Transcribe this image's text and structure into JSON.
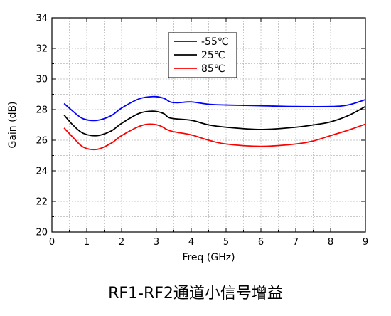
{
  "chart_data": {
    "type": "line",
    "title": "",
    "xlabel": "Freq (GHz)",
    "ylabel": "Gain (dB)",
    "xlim": [
      0,
      9
    ],
    "ylim": [
      20,
      34
    ],
    "xticks": [
      0,
      1,
      2,
      3,
      4,
      5,
      6,
      7,
      8,
      9
    ],
    "yticks": [
      20,
      22,
      24,
      26,
      28,
      30,
      32,
      34
    ],
    "grid": true,
    "legend_position": "top-center",
    "caption": "RF1-RF2通道小信号增益",
    "series": [
      {
        "name": "-55℃",
        "color": "#0000ff",
        "points": [
          [
            0.35,
            28.4
          ],
          [
            0.6,
            27.9
          ],
          [
            0.9,
            27.4
          ],
          [
            1.3,
            27.3
          ],
          [
            1.7,
            27.6
          ],
          [
            2.0,
            28.1
          ],
          [
            2.5,
            28.7
          ],
          [
            2.9,
            28.85
          ],
          [
            3.2,
            28.75
          ],
          [
            3.4,
            28.5
          ],
          [
            3.6,
            28.45
          ],
          [
            4.0,
            28.5
          ],
          [
            4.5,
            28.35
          ],
          [
            5.0,
            28.3
          ],
          [
            6.0,
            28.25
          ],
          [
            7.0,
            28.2
          ],
          [
            8.0,
            28.2
          ],
          [
            8.5,
            28.3
          ],
          [
            9.0,
            28.65
          ]
        ]
      },
      {
        "name": "25℃",
        "color": "#000000",
        "points": [
          [
            0.35,
            27.65
          ],
          [
            0.6,
            27.0
          ],
          [
            0.9,
            26.45
          ],
          [
            1.3,
            26.3
          ],
          [
            1.7,
            26.6
          ],
          [
            2.0,
            27.1
          ],
          [
            2.5,
            27.75
          ],
          [
            2.9,
            27.9
          ],
          [
            3.2,
            27.75
          ],
          [
            3.4,
            27.45
          ],
          [
            4.0,
            27.3
          ],
          [
            4.5,
            27.0
          ],
          [
            5.0,
            26.85
          ],
          [
            6.0,
            26.7
          ],
          [
            7.0,
            26.85
          ],
          [
            7.5,
            27.0
          ],
          [
            8.0,
            27.2
          ],
          [
            8.5,
            27.6
          ],
          [
            9.0,
            28.2
          ]
        ]
      },
      {
        "name": "85℃",
        "color": "#ff0000",
        "points": [
          [
            0.35,
            26.8
          ],
          [
            0.6,
            26.2
          ],
          [
            0.9,
            25.55
          ],
          [
            1.3,
            25.4
          ],
          [
            1.7,
            25.8
          ],
          [
            2.0,
            26.3
          ],
          [
            2.5,
            26.9
          ],
          [
            2.8,
            27.05
          ],
          [
            3.1,
            26.95
          ],
          [
            3.3,
            26.7
          ],
          [
            3.5,
            26.55
          ],
          [
            4.0,
            26.35
          ],
          [
            4.5,
            26.0
          ],
          [
            5.0,
            25.75
          ],
          [
            6.0,
            25.6
          ],
          [
            7.0,
            25.75
          ],
          [
            7.5,
            25.95
          ],
          [
            8.0,
            26.3
          ],
          [
            8.5,
            26.65
          ],
          [
            9.0,
            27.05
          ]
        ]
      }
    ]
  }
}
